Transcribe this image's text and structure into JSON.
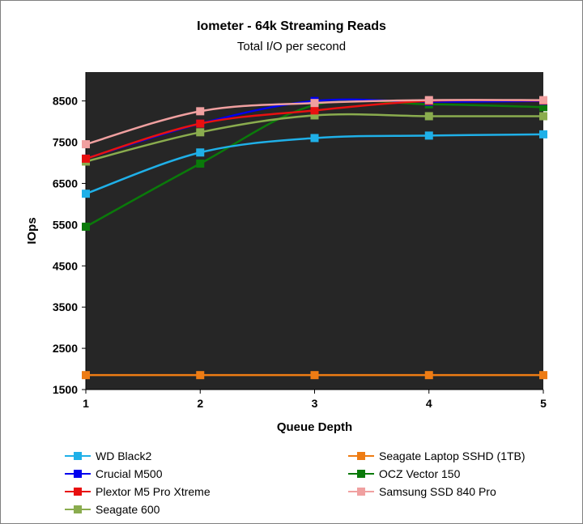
{
  "chart_data": {
    "type": "line",
    "title": "Iometer - 64k Streaming Reads",
    "subtitle": "Total I/O per second",
    "xlabel": "Queue Depth",
    "ylabel": "IOps",
    "x": [
      1,
      2,
      3,
      4,
      5
    ],
    "x_tick_labels": [
      "1",
      "2",
      "3",
      "4",
      "5"
    ],
    "ylim": [
      1500,
      9200
    ],
    "y_ticks": [
      1500,
      2500,
      3500,
      4500,
      5500,
      6500,
      7500,
      8500
    ],
    "y_tick_labels": [
      "1500",
      "2500",
      "3500",
      "4500",
      "5500",
      "6500",
      "7500",
      "8500"
    ],
    "grid": false,
    "plot_background": "#262626",
    "legend_position": "bottom",
    "series": [
      {
        "name": "WD Black2",
        "color": "#1fb0e8",
        "values": [
          6250,
          7250,
          7600,
          7660,
          7690
        ]
      },
      {
        "name": "Seagate Laptop SSHD (1TB)",
        "color": "#ee7c14",
        "values": [
          1850,
          1850,
          1850,
          1850,
          1850
        ]
      },
      {
        "name": "Crucial M500",
        "color": "#0000ee",
        "values": [
          7100,
          7950,
          8500,
          8480,
          8500
        ]
      },
      {
        "name": "OCZ Vector 150",
        "color": "#0a7a0a",
        "values": [
          5450,
          6980,
          8400,
          8420,
          8350
        ]
      },
      {
        "name": "Plextor M5 Pro Xtreme",
        "color": "#e81010",
        "values": [
          7100,
          7950,
          8270,
          8500,
          8510
        ]
      },
      {
        "name": "Samsung SSD 840 Pro",
        "color": "#f0a0a0",
        "values": [
          7450,
          8250,
          8450,
          8520,
          8520
        ]
      },
      {
        "name": "Seagate 600",
        "color": "#8aac4e",
        "values": [
          7030,
          7740,
          8150,
          8130,
          8130
        ]
      }
    ],
    "draw_order": [
      3,
      0,
      2,
      6,
      4,
      5,
      1
    ]
  }
}
